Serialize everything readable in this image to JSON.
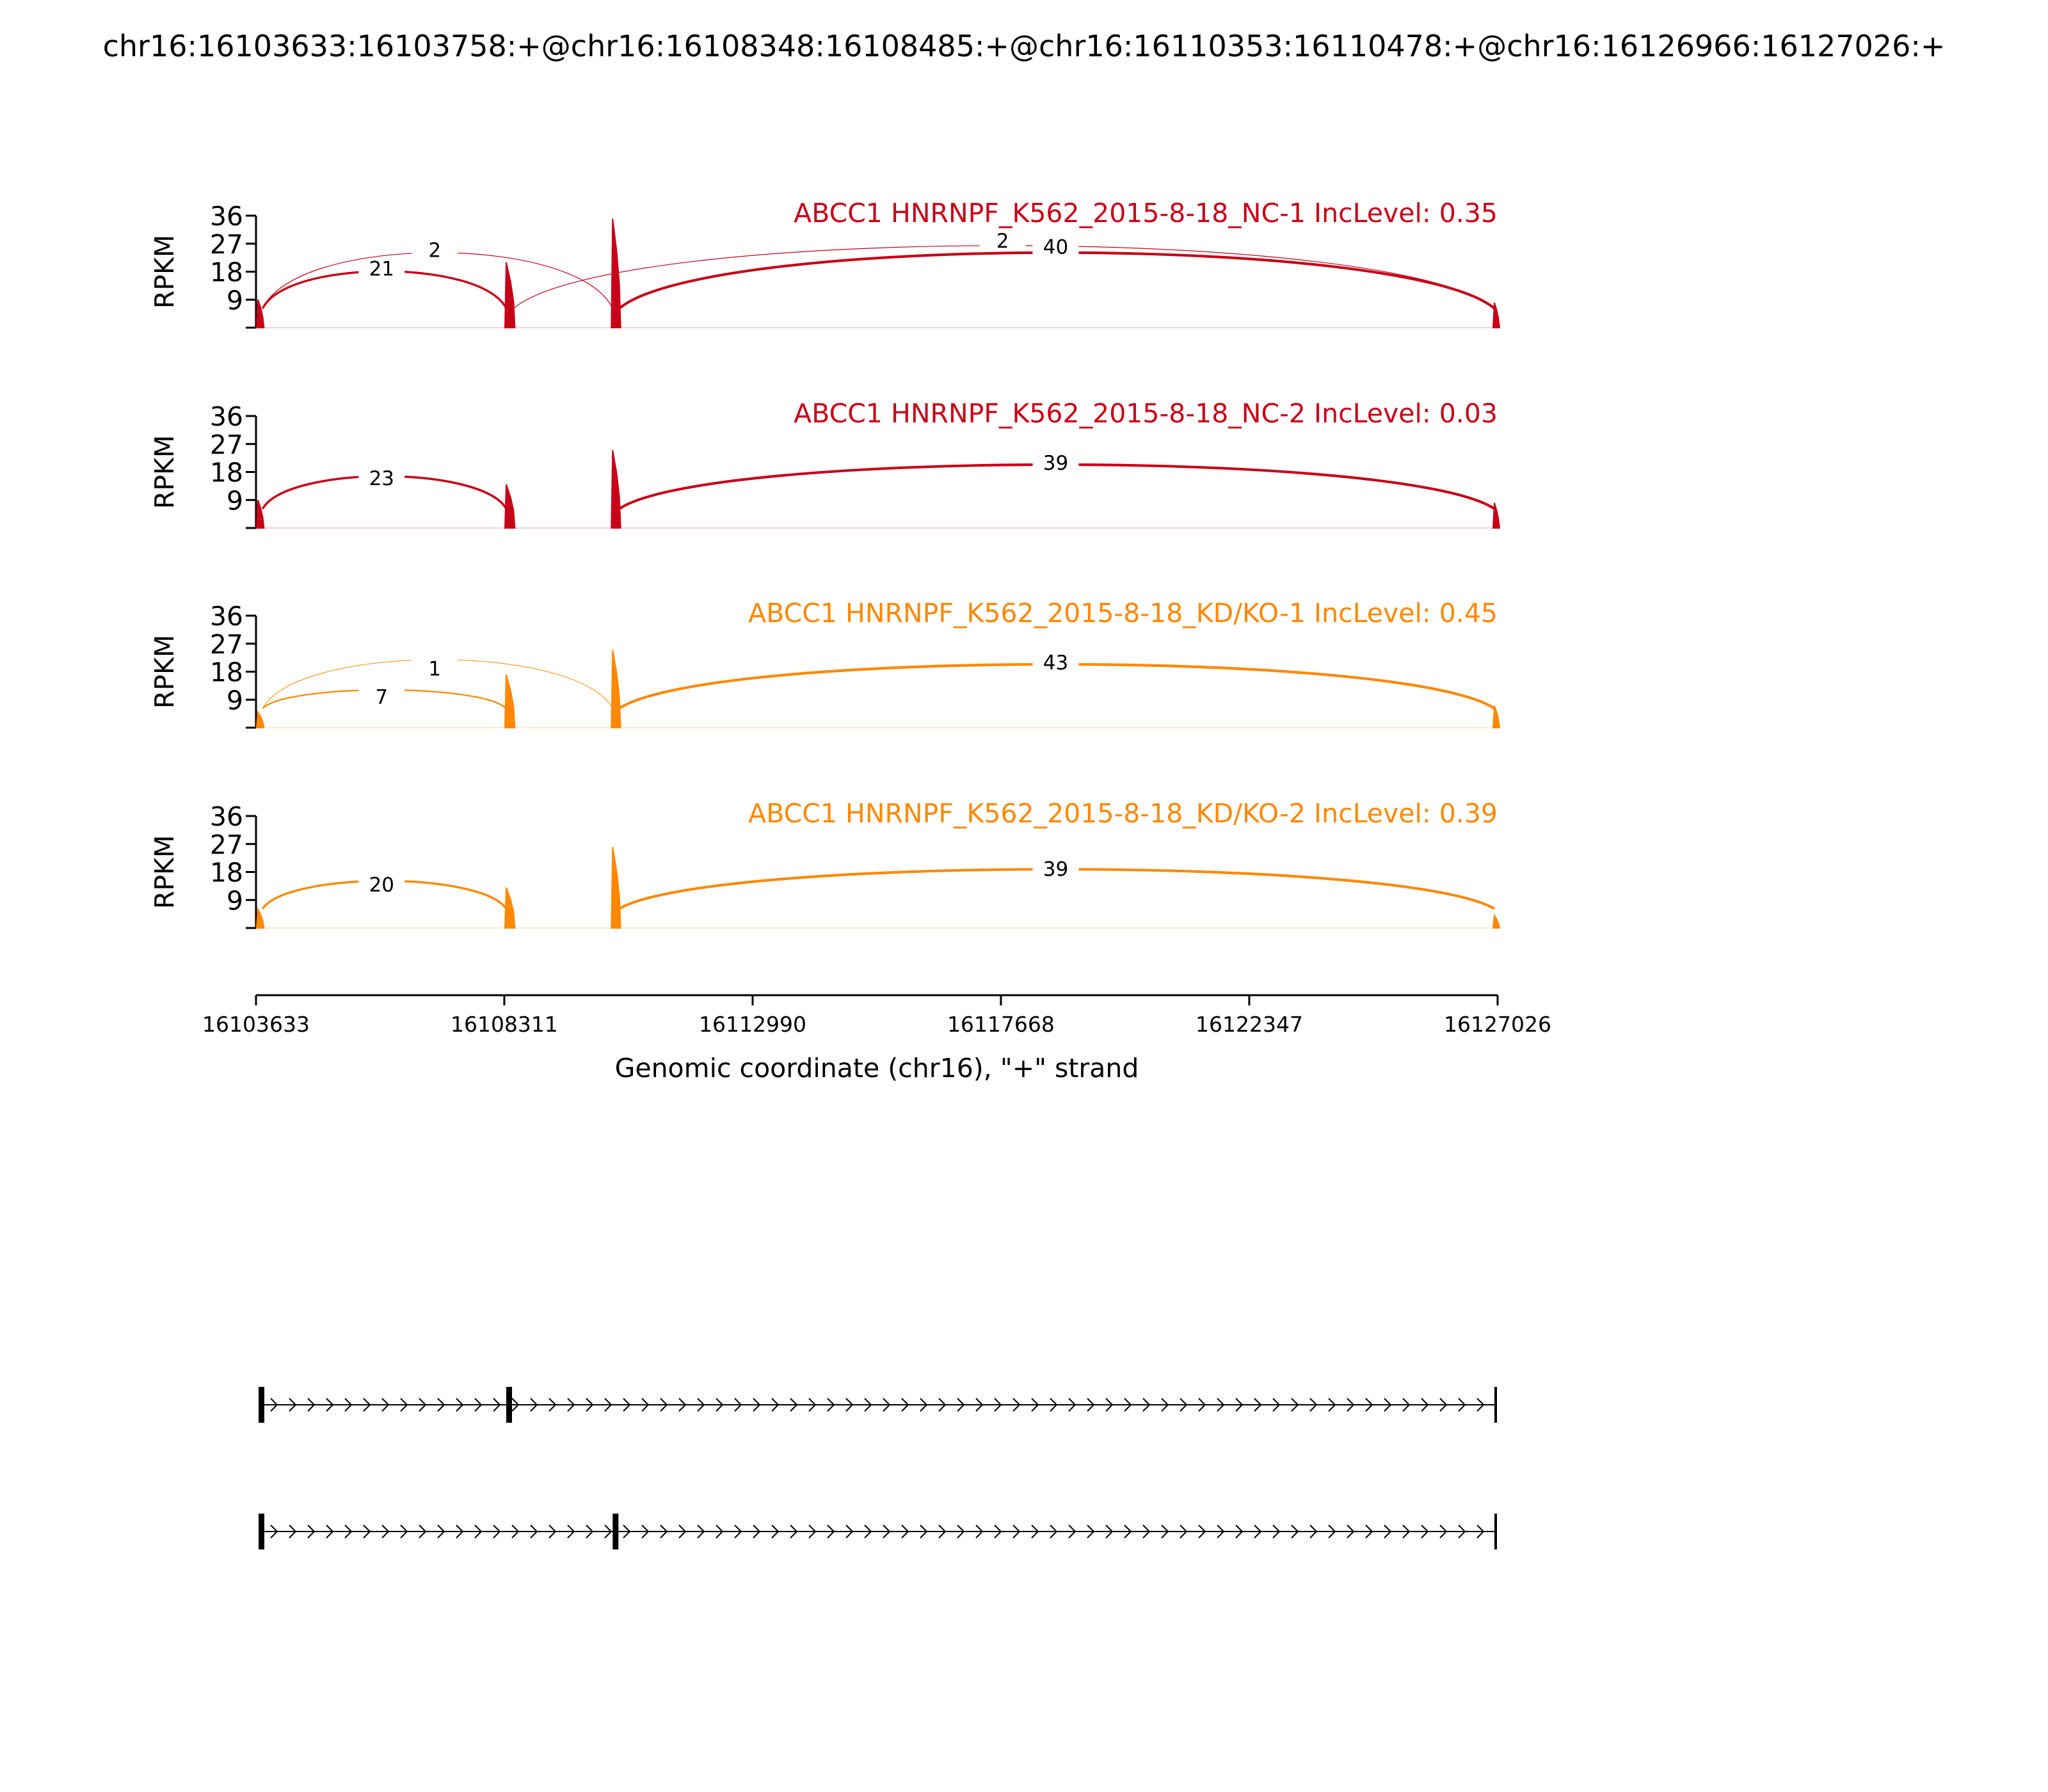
{
  "figure": {
    "title": "chr16:16103633:16103758:+@chr16:16108348:16108485:+@chr16:16110353:16110478:+@chr16:16126966:16127026:+"
  },
  "chart_data": {
    "type": "area",
    "x_axis": {
      "label": "Genomic coordinate (chr16), \"+\" strand",
      "range": [
        16103633,
        16127026
      ],
      "ticks": [
        16103633,
        16108311,
        16112990,
        16117668,
        16122347,
        16127026
      ],
      "tick_labels": [
        "16103633",
        "16108311",
        "16112990",
        "16117668",
        "16122347",
        "16127026"
      ]
    },
    "y_axis": {
      "label": "RPKM",
      "range": [
        0,
        36
      ],
      "ticks": [
        9,
        18,
        27,
        36
      ],
      "tick_labels": [
        "9",
        "18",
        "27",
        "36"
      ]
    },
    "exons": [
      {
        "start": 16103633,
        "end": 16103758
      },
      {
        "start": 16108348,
        "end": 16108485
      },
      {
        "start": 16110353,
        "end": 16110478
      },
      {
        "start": 16126966,
        "end": 16127026
      }
    ],
    "tracks": [
      {
        "name": "ABCC1 HNRNPF_K562_2015-8-18_NC-1 IncLevel: 0.35",
        "color": "#c80018",
        "peaks": [
          {
            "start": 16103633,
            "end": 16103758,
            "height": 9
          },
          {
            "start": 16108348,
            "end": 16108485,
            "height": 21
          },
          {
            "start": 16110353,
            "end": 16110478,
            "height": 35
          },
          {
            "start": 16126966,
            "end": 16127026,
            "height": 8
          }
        ],
        "junctions": [
          {
            "from": 16103758,
            "to": 16108348,
            "count": "21",
            "height": 18,
            "label_x": 16106000,
            "label_y": 19
          },
          {
            "from": 16103758,
            "to": 16110353,
            "count": "2",
            "height": 26,
            "label_x": 16107000,
            "label_y": 25
          },
          {
            "from": 16108485,
            "to": 16126966,
            "count": "2",
            "height": 29,
            "label_x": 16117700,
            "label_y": 28
          },
          {
            "from": 16110478,
            "to": 16126966,
            "count": "40",
            "height": 26,
            "label_x": 16118700,
            "label_y": 26
          }
        ]
      },
      {
        "name": "ABCC1 HNRNPF_K562_2015-8-18_NC-2 IncLevel: 0.03",
        "color": "#c80018",
        "peaks": [
          {
            "start": 16103633,
            "end": 16103758,
            "height": 9
          },
          {
            "start": 16108348,
            "end": 16108485,
            "height": 14
          },
          {
            "start": 16110353,
            "end": 16110478,
            "height": 25
          },
          {
            "start": 16126966,
            "end": 16127026,
            "height": 8
          }
        ],
        "junctions": [
          {
            "from": 16103758,
            "to": 16108348,
            "count": "23",
            "height": 16,
            "label_x": 16106000,
            "label_y": 16
          },
          {
            "from": 16110478,
            "to": 16126966,
            "count": "39",
            "height": 21,
            "label_x": 16118700,
            "label_y": 21
          }
        ]
      },
      {
        "name": "ABCC1 HNRNPF_K562_2015-8-18_KD/KO-1 IncLevel: 0.45",
        "color": "#ff8800",
        "peaks": [
          {
            "start": 16103633,
            "end": 16103758,
            "height": 5
          },
          {
            "start": 16108348,
            "end": 16108485,
            "height": 17
          },
          {
            "start": 16110353,
            "end": 16110478,
            "height": 25
          },
          {
            "start": 16126966,
            "end": 16127026,
            "height": 7
          }
        ],
        "junctions": [
          {
            "from": 16103758,
            "to": 16108348,
            "count": "7",
            "height": 10,
            "label_x": 16106000,
            "label_y": 10
          },
          {
            "from": 16103758,
            "to": 16110353,
            "count": "1",
            "height": 23,
            "label_x": 16107000,
            "label_y": 19
          },
          {
            "from": 16110478,
            "to": 16126966,
            "count": "43",
            "height": 21,
            "label_x": 16118700,
            "label_y": 21
          }
        ]
      },
      {
        "name": "ABCC1 HNRNPF_K562_2015-8-18_KD/KO-2 IncLevel: 0.39",
        "color": "#ff8800",
        "peaks": [
          {
            "start": 16103633,
            "end": 16103758,
            "height": 6
          },
          {
            "start": 16108348,
            "end": 16108485,
            "height": 13
          },
          {
            "start": 16110353,
            "end": 16110478,
            "height": 26
          },
          {
            "start": 16126966,
            "end": 16127026,
            "height": 4
          }
        ],
        "junctions": [
          {
            "from": 16103758,
            "to": 16108348,
            "count": "20",
            "height": 14,
            "label_x": 16106000,
            "label_y": 14
          },
          {
            "from": 16110478,
            "to": 16126966,
            "count": "39",
            "height": 19,
            "label_x": 16118700,
            "label_y": 19
          }
        ]
      }
    ],
    "isoforms": [
      {
        "exons": [
          [
            16103633,
            16103758
          ],
          [
            16108348,
            16108485
          ],
          [
            16126966,
            16127026
          ]
        ]
      },
      {
        "exons": [
          [
            16103633,
            16103758
          ],
          [
            16110353,
            16110478
          ],
          [
            16126966,
            16127026
          ]
        ]
      }
    ]
  }
}
